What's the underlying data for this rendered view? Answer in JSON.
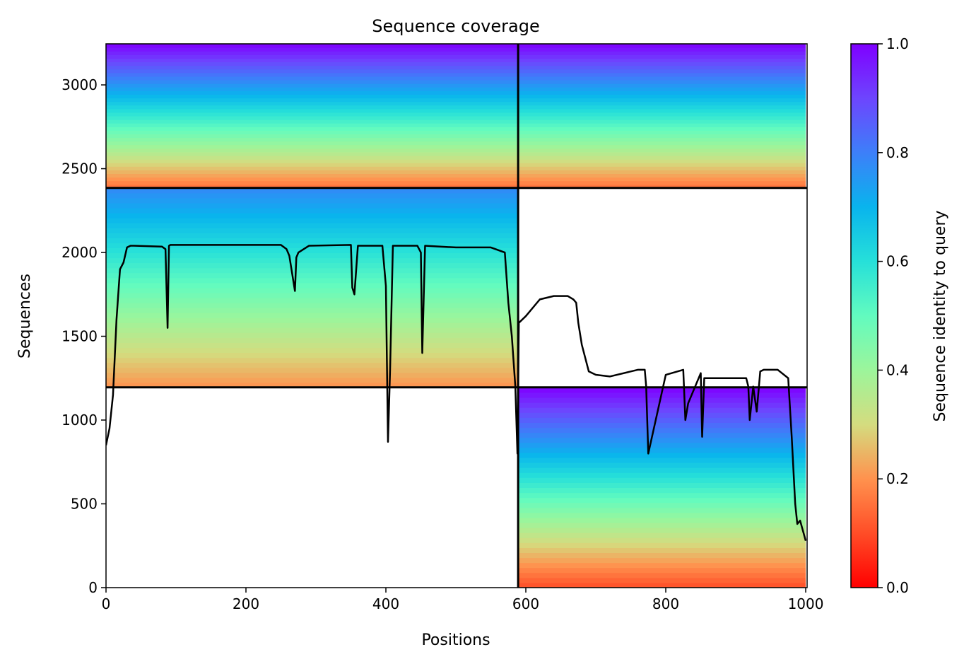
{
  "chart_data": {
    "type": "heatmap",
    "title": "Sequence coverage",
    "xlabel": "Positions",
    "ylabel": "Sequences",
    "xlim": [
      0,
      1002
    ],
    "ylim": [
      0,
      3245
    ],
    "x_ticks": [
      0,
      200,
      400,
      600,
      800,
      1000
    ],
    "y_ticks": [
      0,
      500,
      1000,
      1500,
      2000,
      2500,
      3000
    ],
    "x_tick_labels": [
      "0",
      "200",
      "400",
      "600",
      "800",
      "1000"
    ],
    "y_tick_labels": [
      "0",
      "500",
      "1000",
      "1500",
      "2000",
      "2500",
      "3000"
    ],
    "grid": false,
    "colorbar": {
      "label": "Sequence identity to query",
      "range": [
        0,
        1
      ],
      "colormap": "rainbow_r",
      "ticks": [
        0,
        0.2,
        0.4,
        0.6,
        0.8,
        1.0
      ],
      "tick_labels": [
        "0.0",
        "0.2",
        "0.4",
        "0.6",
        "0.8",
        "1.0"
      ]
    },
    "dividers": {
      "vertical_x": [
        589
      ],
      "horizontal_y": [
        1195,
        2385
      ],
      "color": "#000000"
    },
    "coverage_blocks": [
      {
        "x": [
          0,
          589
        ],
        "y": [
          2385,
          3245
        ],
        "identity": [
          0.15,
          1.0
        ]
      },
      {
        "x": [
          0,
          589
        ],
        "y": [
          1195,
          2385
        ],
        "identity": [
          0.2,
          0.78
        ]
      },
      {
        "x": [
          589,
          1000
        ],
        "y": [
          2385,
          3245
        ],
        "identity": [
          0.15,
          1.0
        ]
      },
      {
        "x": [
          589,
          1000
        ],
        "y": [
          0,
          1195
        ],
        "identity": [
          0.1,
          1.0
        ]
      }
    ],
    "coverage_line": {
      "name": "",
      "color": "#000000",
      "x": [
        0,
        5,
        10,
        15,
        20,
        25,
        30,
        35,
        40,
        80,
        85,
        88,
        90,
        92,
        95,
        150,
        200,
        250,
        258,
        262,
        270,
        272,
        275,
        290,
        350,
        352,
        355,
        360,
        395,
        400,
        403,
        406,
        410,
        445,
        450,
        452,
        456,
        500,
        550,
        570,
        575,
        580,
        585,
        588,
        590,
        600,
        620,
        640,
        660,
        668,
        672,
        675,
        680,
        690,
        700,
        720,
        760,
        770,
        772,
        775,
        800,
        825,
        828,
        832,
        850,
        852,
        855,
        900,
        915,
        918,
        920,
        925,
        930,
        935,
        940,
        960,
        975,
        980,
        985,
        988,
        992,
        1000
      ],
      "y": [
        850,
        950,
        1150,
        1600,
        1900,
        1940,
        2030,
        2040,
        2040,
        2035,
        2020,
        1550,
        2040,
        2045,
        2045,
        2045,
        2045,
        2045,
        2020,
        1980,
        1770,
        1970,
        2000,
        2040,
        2045,
        1790,
        1750,
        2040,
        2040,
        1800,
        870,
        1300,
        2040,
        2040,
        2000,
        1400,
        2040,
        2030,
        2030,
        2000,
        1700,
        1500,
        1200,
        800,
        1580,
        1620,
        1720,
        1740,
        1740,
        1720,
        1700,
        1580,
        1450,
        1290,
        1270,
        1260,
        1300,
        1300,
        1200,
        800,
        1270,
        1300,
        1000,
        1100,
        1280,
        900,
        1250,
        1250,
        1250,
        1200,
        1000,
        1200,
        1050,
        1290,
        1300,
        1300,
        1250,
        900,
        500,
        380,
        400,
        280
      ]
    }
  }
}
